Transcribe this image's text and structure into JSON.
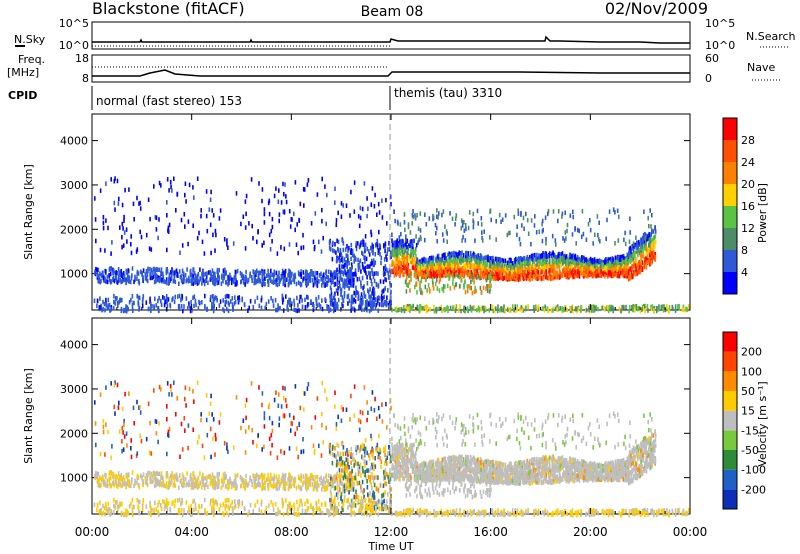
{
  "header": {
    "station": "Blackstone (fitACF)",
    "beam": "Beam 08",
    "date": "02/Nov/2009"
  },
  "aux_panels": {
    "nsky": {
      "left_label": "N.Sky",
      "right_label": "N.Search",
      "left_ticks": [
        "10^5",
        "10^0"
      ],
      "right_ticks": [
        "10^5",
        "10^0"
      ]
    },
    "freq": {
      "left_label": "Freq.",
      "unit": "[MHz]",
      "right_label": "Nave",
      "left_ticks": [
        "18",
        "8"
      ],
      "right_ticks": [
        "60",
        "0"
      ]
    },
    "cpid": {
      "label": "CPID",
      "modes": [
        "normal (fast stereo) 153",
        "themis (tau) 3310"
      ]
    }
  },
  "chart_data": [
    {
      "type": "heatmap",
      "name": "power",
      "ylabel": "Slant Range [km]",
      "ylim": [
        180,
        4600
      ],
      "yticks": [
        "1000",
        "2000",
        "3000",
        "4000"
      ],
      "colorbar": {
        "label": "Power [dB]",
        "levels": [
          "4",
          "8",
          "12",
          "16",
          "20",
          "24",
          "28"
        ],
        "colors": [
          "#0000ff",
          "#2e5ad8",
          "#4c8c66",
          "#5ac346",
          "#ffcf00",
          "#ff8000",
          "#ff5000",
          "#ff0000"
        ]
      }
    },
    {
      "type": "heatmap",
      "name": "velocity",
      "ylabel": "Slant Range [km]",
      "ylim": [
        180,
        4600
      ],
      "yticks": [
        "1000",
        "2000",
        "3000",
        "4000"
      ],
      "colorbar": {
        "label": "Velocity [m s⁻¹]",
        "levels": [
          "200",
          "100",
          "50",
          "15",
          "-15",
          "-50",
          "-100",
          "-200"
        ],
        "colors": [
          "#0b2fb7",
          "#1f60c8",
          "#2e8b3a",
          "#79c93d",
          "#bebebe",
          "#ffcc00",
          "#ff8c00",
          "#ff4500",
          "#ff0000"
        ]
      }
    }
  ],
  "xaxis": {
    "label": "Time UT",
    "ticks": [
      "00:00",
      "04:00",
      "08:00",
      "12:00",
      "16:00",
      "20:00",
      "00:00"
    ],
    "range_hours": [
      0,
      24
    ]
  }
}
